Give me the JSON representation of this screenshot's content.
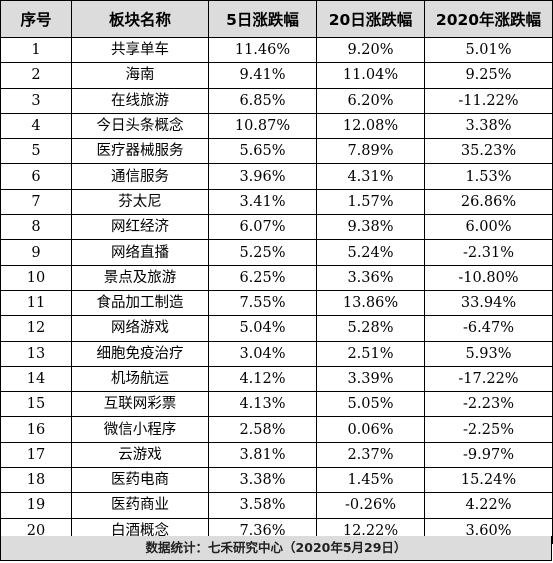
{
  "table": {
    "headers": [
      "序号",
      "板块名称",
      "5日涨跌幅",
      "20日涨跌幅",
      "2020年涨跌幅"
    ],
    "rows": [
      [
        "1",
        "共享单车",
        "11.46%",
        "9.20%",
        "5.01%"
      ],
      [
        "2",
        "海南",
        "9.41%",
        "11.04%",
        "9.25%"
      ],
      [
        "3",
        "在线旅游",
        "6.85%",
        "6.20%",
        "-11.22%"
      ],
      [
        "4",
        "今日头条概念",
        "10.87%",
        "12.08%",
        "3.38%"
      ],
      [
        "5",
        "医疗器械服务",
        "5.65%",
        "7.89%",
        "35.23%"
      ],
      [
        "6",
        "通信服务",
        "3.96%",
        "4.31%",
        "1.53%"
      ],
      [
        "7",
        "芬太尼",
        "3.41%",
        "1.57%",
        "26.86%"
      ],
      [
        "8",
        "网红经济",
        "6.07%",
        "9.38%",
        "6.00%"
      ],
      [
        "9",
        "网络直播",
        "5.25%",
        "5.24%",
        "-2.31%"
      ],
      [
        "10",
        "景点及旅游",
        "6.25%",
        "3.36%",
        "-10.80%"
      ],
      [
        "11",
        "食品加工制造",
        "7.55%",
        "13.86%",
        "33.94%"
      ],
      [
        "12",
        "网络游戏",
        "5.04%",
        "5.28%",
        "-6.47%"
      ],
      [
        "13",
        "细胞免疫治疗",
        "3.04%",
        "2.51%",
        "5.93%"
      ],
      [
        "14",
        "机场航运",
        "4.12%",
        "3.39%",
        "-17.22%"
      ],
      [
        "15",
        "互联网彩票",
        "4.13%",
        "5.05%",
        "-2.23%"
      ],
      [
        "16",
        "微信小程序",
        "2.58%",
        "0.06%",
        "-2.25%"
      ],
      [
        "17",
        "云游戏",
        "3.81%",
        "2.37%",
        "-9.97%"
      ],
      [
        "18",
        "医药电商",
        "3.38%",
        "1.45%",
        "15.24%"
      ],
      [
        "19",
        "医药商业",
        "3.58%",
        "-0.26%",
        "4.22%"
      ],
      [
        "20",
        "白酒概念",
        "7.36%",
        "12.22%",
        "3.60%"
      ]
    ]
  },
  "footer": {
    "source": "数据统计：七禾研究中心（2020年5月29日）"
  },
  "colors": {
    "header_bg": "#dcdcdc",
    "footer_bg": "#dcdcdc",
    "border": "#000000"
  }
}
